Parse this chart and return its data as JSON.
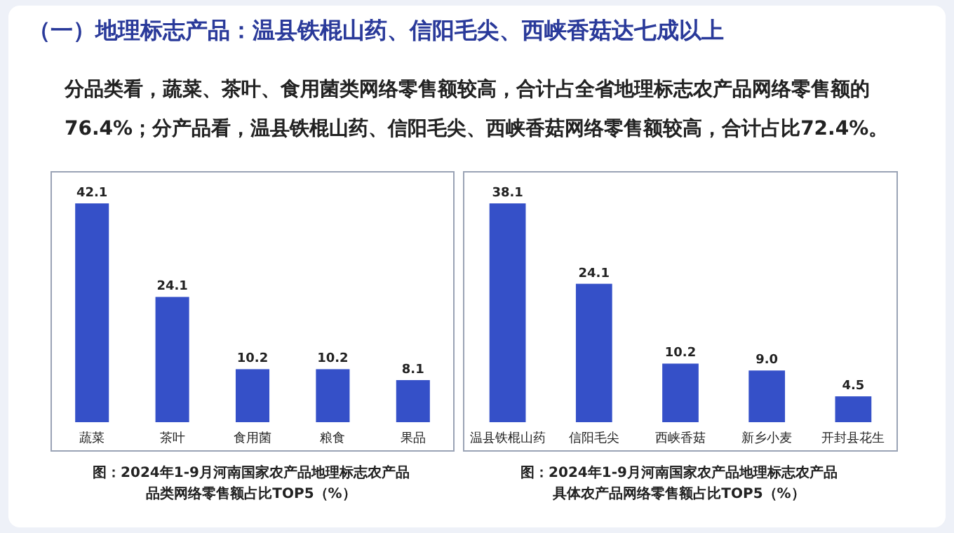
{
  "chart_data": [
    {
      "type": "other",
      "title": "（一）地理标志产品：温县铁棍山药、信阳毛尖、西峡香菇达七成以上",
      "subtitle": "分品类看，蔬菜、茶叶、食用菌类网络零售额较高，合计占全省地理标志农产品网络零售额的76.4%；分产品看，温县铁棍山药、信阳毛尖、西峡香菇网络零售额较高，合计占比72.4%。"
    },
    {
      "type": "bar",
      "categories": [
        "蔬菜",
        "茶叶",
        "食用菌",
        "粮食",
        "果品"
      ],
      "values": [
        42.1,
        24.1,
        10.2,
        10.2,
        8.1
      ],
      "color": "#3550c8",
      "data_labels": true,
      "annotations": [
        "图：2024年1-9月河南国家农产品地理标志农产品品类网络零售额占比TOP5（%）"
      ]
    },
    {
      "type": "bar",
      "categories": [
        "温县铁棍山药",
        "信阳毛尖",
        "西峡香菇",
        "新乡小麦",
        "开封县花生"
      ],
      "values": [
        38.1,
        24.1,
        10.2,
        9.0,
        4.5
      ],
      "value_labels": [
        "38.1",
        "24.1",
        "10.2",
        "9.0",
        "4.5"
      ],
      "color": "#3550c8",
      "annotations": [
        "图：2024年1-9月河南国家农产品地理标志农产品具体农产品网络零售额占比TOP5（%）"
      ]
    }
  ]
}
